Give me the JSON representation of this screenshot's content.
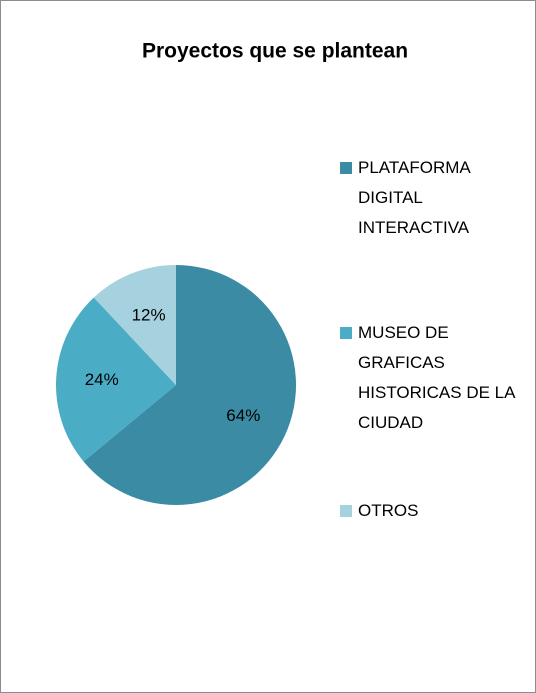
{
  "chart_data": {
    "type": "pie",
    "title": "Proyectos que se plantean",
    "categories": [
      "PLATAFORMA DIGITAL INTERACTIVA",
      "MUSEO DE GRAFICAS HISTORICAS DE LA CIUDAD",
      "OTROS"
    ],
    "values": [
      64,
      24,
      12
    ],
    "value_labels": [
      "64%",
      "24%",
      "12%"
    ],
    "colors": [
      "#3b8ba5",
      "#4bacc6",
      "#a6d1de"
    ],
    "legend": "right"
  }
}
